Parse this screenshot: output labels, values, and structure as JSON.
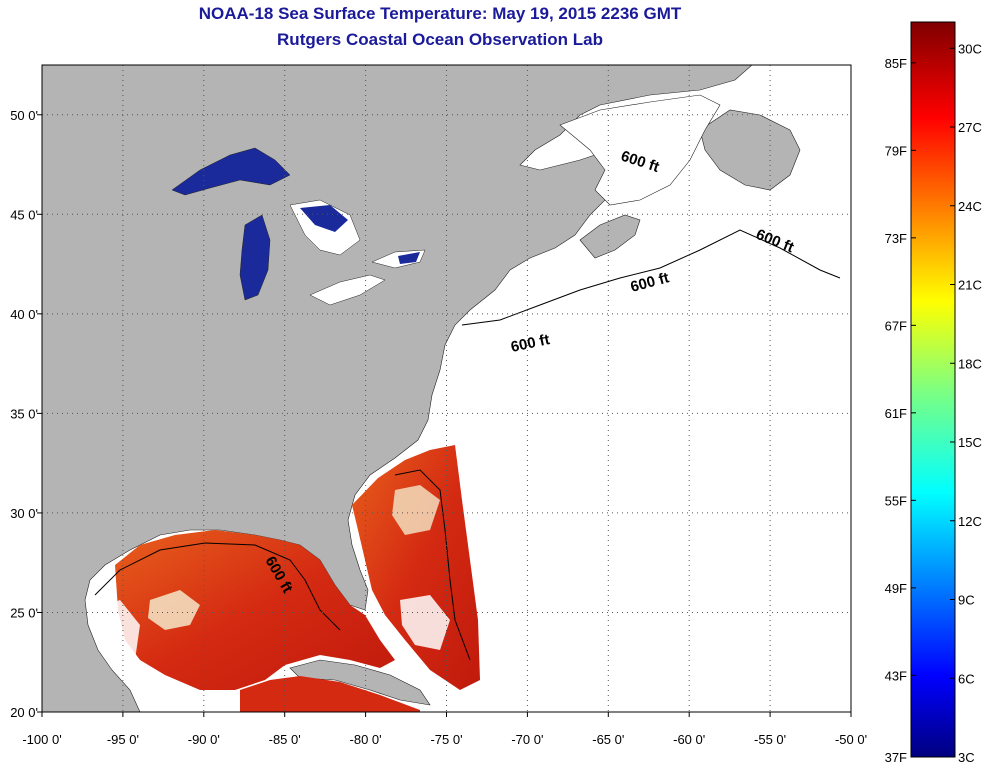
{
  "title": "NOAA-18 Sea Surface Temperature:  May 19, 2015 2236 GMT",
  "subtitle": "Rutgers Coastal Ocean Observation Lab",
  "map": {
    "lon_range": [
      -100,
      -50
    ],
    "lat_range": [
      20,
      52.5
    ],
    "x_ticks": [
      "-100 0'",
      "-95 0'",
      "-90 0'",
      "-85 0'",
      "-80 0'",
      "-75 0'",
      "-70 0'",
      "-65 0'",
      "-60 0'",
      "-55 0'",
      "-50 0'"
    ],
    "x_tick_values": [
      -100,
      -95,
      -90,
      -85,
      -80,
      -75,
      -70,
      -65,
      -60,
      -55,
      -50
    ],
    "y_ticks": [
      "20 0'",
      "25 0'",
      "30 0'",
      "35 0'",
      "40 0'",
      "45 0'",
      "50 0'"
    ],
    "y_tick_values": [
      20,
      25,
      30,
      35,
      40,
      45,
      50
    ],
    "grid": "dotted",
    "contour_label": "600 ft",
    "colors": {
      "land": "#b4b4b4",
      "no_data": "#ffffff",
      "warm_sst": "#d42a12",
      "lake_cold": "#1a2a9a"
    }
  },
  "colorbar": {
    "fahrenheit_labels": [
      "85F",
      "79F",
      "73F",
      "67F",
      "61F",
      "55F",
      "49F",
      "43F",
      "37F"
    ],
    "celsius_labels": [
      "30C",
      "27C",
      "24C",
      "21C",
      "18C",
      "15C",
      "12C",
      "9C",
      "6C",
      "3C"
    ],
    "range_c": [
      3,
      31
    ],
    "colormap": "jet",
    "colors": [
      "#7f0000",
      "#ff0000",
      "#ff7f00",
      "#ffff00",
      "#7fff7f",
      "#00ffff",
      "#007fff",
      "#0000ff",
      "#00007f"
    ]
  }
}
